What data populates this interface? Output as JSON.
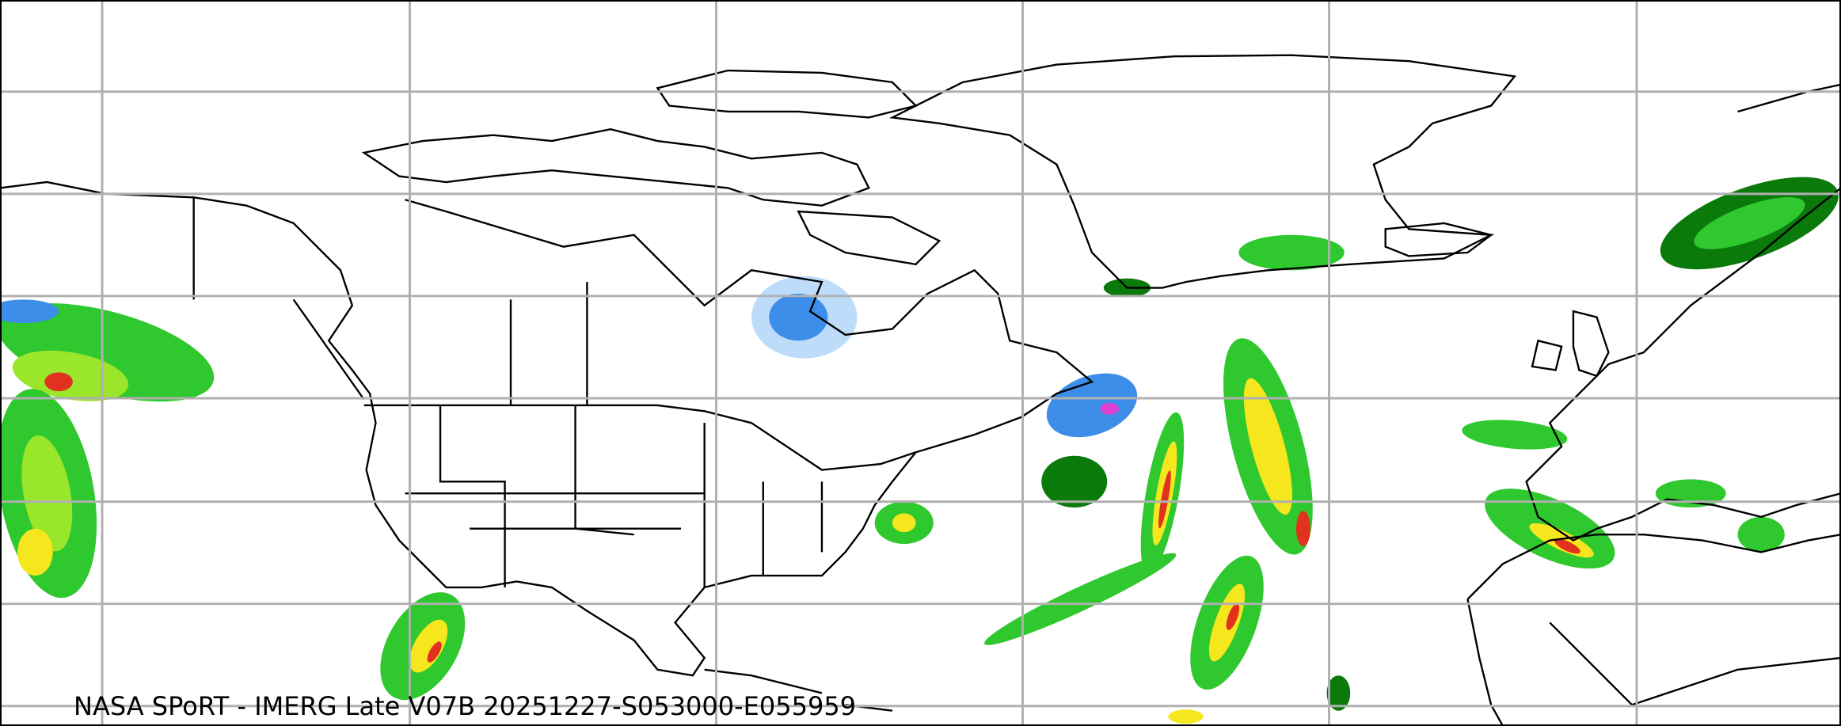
{
  "map": {
    "caption": "NASA SPoRT - IMERG Late V07B 20251227-S053000-E055959",
    "product": "IMERG Late V07B",
    "colors": {
      "gridline": "#b0b0b0",
      "coastline": "#000000",
      "precip_light_blue": "#bcdcfa",
      "precip_blue": "#3d8ee8",
      "precip_dark_green": "#0a7a0a",
      "precip_green": "#2fc82f",
      "precip_light_green": "#9ae62a",
      "precip_yellow": "#f5e61e",
      "precip_orange": "#f59a1e",
      "precip_red": "#e0321e",
      "precip_magenta": "#e040d0"
    }
  }
}
